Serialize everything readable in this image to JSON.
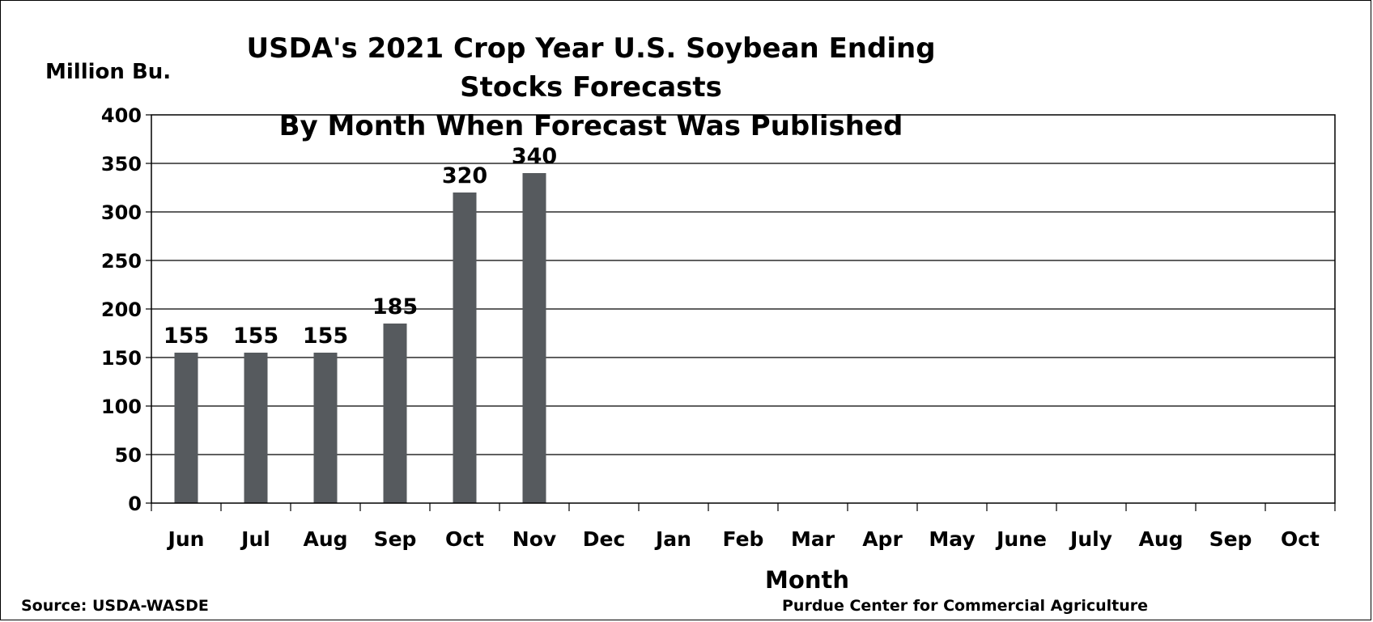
{
  "chart_data": {
    "type": "bar",
    "title_line1": "USDA's 2021 Crop Year U.S. Soybean Ending Stocks Forecasts",
    "title_line2": "By Month When Forecast Was Published",
    "ylabel": "Million Bu.",
    "xlabel": "Month",
    "ylim": [
      0,
      400
    ],
    "yticks": [
      0,
      50,
      100,
      150,
      200,
      250,
      300,
      350,
      400
    ],
    "grid": true,
    "categories": [
      "Jun",
      "Jul",
      "Aug",
      "Sep",
      "Oct",
      "Nov",
      "Dec",
      "Jan",
      "Feb",
      "Mar",
      "Apr",
      "May",
      "June",
      "July",
      "Aug",
      "Sep",
      "Oct"
    ],
    "values": [
      155,
      155,
      155,
      185,
      320,
      340,
      null,
      null,
      null,
      null,
      null,
      null,
      null,
      null,
      null,
      null,
      null
    ],
    "bar_color": "#565a5e"
  },
  "footer": {
    "source": "Source: USDA-WASDE",
    "credit": "Purdue Center for Commercial Agriculture"
  }
}
